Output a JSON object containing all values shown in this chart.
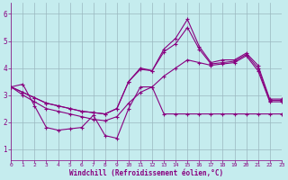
{
  "xlabel": "Windchill (Refroidissement éolien,°C)",
  "background_color": "#c5ecee",
  "grid_color": "#9ab8c0",
  "line_color": "#880080",
  "xlim": [
    0,
    23
  ],
  "ylim": [
    0.6,
    6.4
  ],
  "xticks": [
    0,
    1,
    2,
    3,
    4,
    5,
    6,
    7,
    8,
    9,
    10,
    11,
    12,
    13,
    14,
    15,
    16,
    17,
    18,
    19,
    20,
    21,
    22,
    23
  ],
  "yticks": [
    1,
    2,
    3,
    4,
    5,
    6
  ],
  "lines": [
    {
      "x": [
        0,
        1,
        2,
        3,
        4,
        5,
        6,
        7,
        8,
        9,
        10,
        11,
        12,
        13,
        14,
        15,
        16,
        17,
        18,
        19,
        20,
        21,
        22,
        23
      ],
      "y": [
        3.3,
        3.4,
        2.6,
        1.8,
        1.7,
        1.75,
        1.8,
        2.25,
        1.5,
        1.4,
        2.5,
        3.3,
        3.3,
        2.3,
        2.3,
        2.3,
        2.3,
        2.3,
        2.3,
        2.3,
        2.3,
        2.3,
        2.3,
        2.3
      ]
    },
    {
      "x": [
        0,
        1,
        2,
        3,
        4,
        5,
        6,
        7,
        8,
        9,
        10,
        11,
        12,
        13,
        14,
        15,
        16,
        17,
        18,
        19,
        20,
        21,
        22,
        23
      ],
      "y": [
        3.3,
        3.1,
        2.9,
        2.7,
        2.6,
        2.5,
        2.4,
        2.35,
        2.3,
        2.5,
        3.5,
        4.0,
        3.9,
        4.7,
        5.1,
        5.8,
        4.8,
        4.2,
        4.3,
        4.3,
        4.55,
        4.1,
        2.85,
        2.85
      ]
    },
    {
      "x": [
        0,
        1,
        2,
        3,
        4,
        5,
        6,
        7,
        8,
        9,
        10,
        11,
        12,
        13,
        14,
        15,
        16,
        17,
        18,
        19,
        20,
        21,
        22,
        23
      ],
      "y": [
        3.3,
        3.1,
        2.9,
        2.7,
        2.6,
        2.5,
        2.4,
        2.35,
        2.3,
        2.5,
        3.5,
        3.95,
        3.9,
        4.6,
        4.9,
        5.5,
        4.7,
        4.15,
        4.2,
        4.25,
        4.5,
        4.0,
        2.8,
        2.8
      ]
    },
    {
      "x": [
        0,
        1,
        2,
        3,
        4,
        5,
        6,
        7,
        8,
        9,
        10,
        11,
        12,
        13,
        14,
        15,
        16,
        17,
        18,
        19,
        20,
        21,
        22,
        23
      ],
      "y": [
        3.3,
        3.0,
        2.75,
        2.5,
        2.4,
        2.3,
        2.2,
        2.1,
        2.05,
        2.2,
        2.7,
        3.1,
        3.3,
        3.7,
        4.0,
        4.3,
        4.2,
        4.1,
        4.15,
        4.2,
        4.45,
        3.9,
        2.75,
        2.75
      ]
    }
  ]
}
